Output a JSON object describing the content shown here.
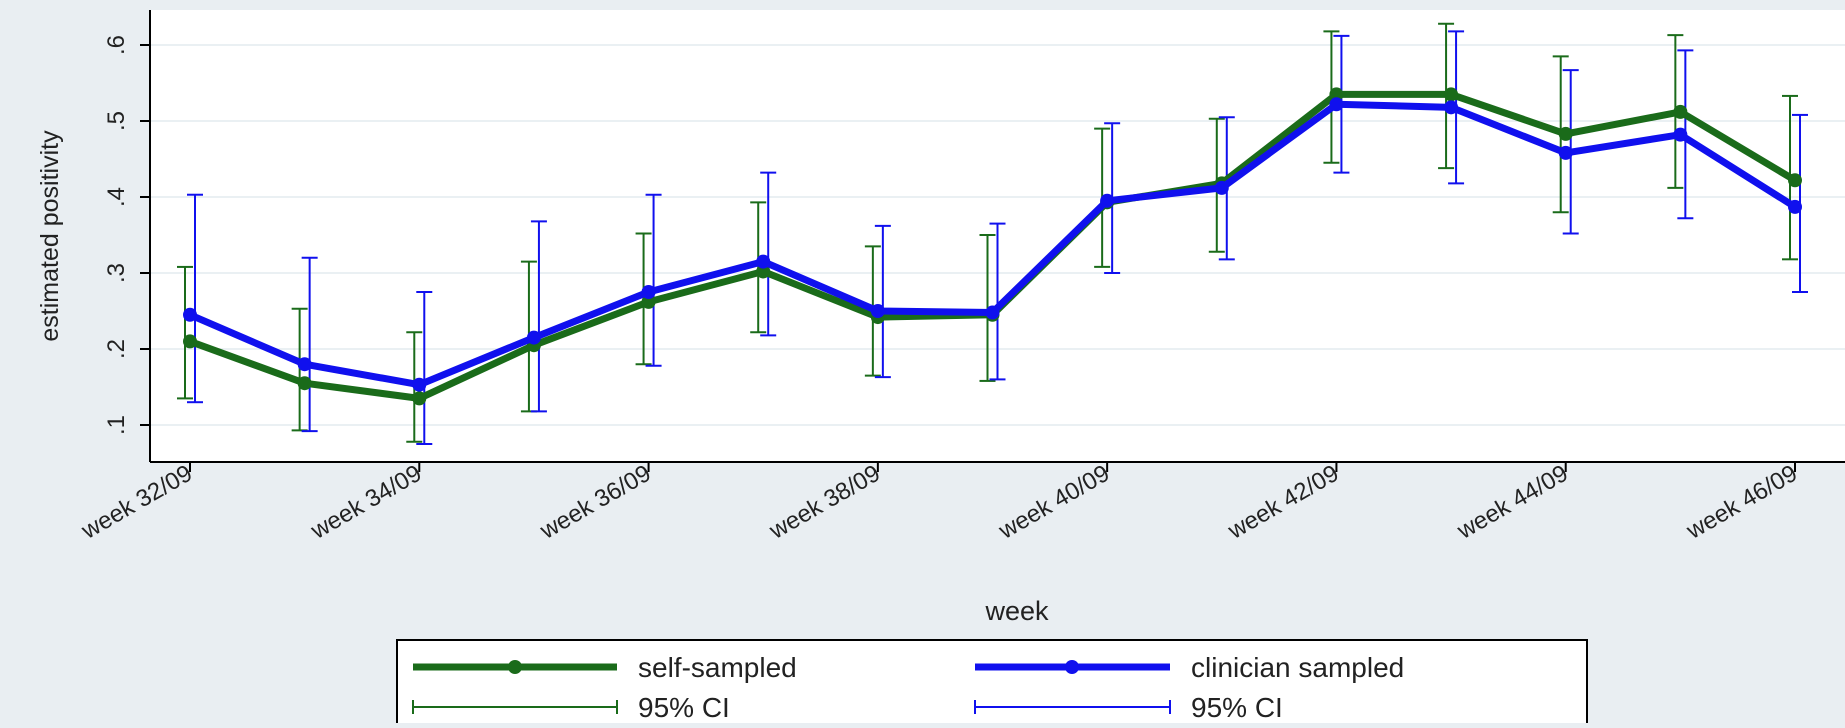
{
  "chart_data": {
    "type": "line",
    "title": "",
    "xlabel": "week",
    "ylabel": "estimated positivity",
    "ylim": [
      0.08,
      0.64
    ],
    "yticks": [
      0.1,
      0.2,
      0.3,
      0.4,
      0.5,
      0.6
    ],
    "ytick_labels": [
      ".1",
      ".2",
      ".3",
      ".4",
      ".5",
      ".6"
    ],
    "x": [
      32,
      33,
      34,
      35,
      36,
      37,
      38,
      39,
      40,
      41,
      42,
      43,
      44,
      45,
      46
    ],
    "xticks": [
      32,
      34,
      36,
      38,
      40,
      42,
      44,
      46
    ],
    "xtick_labels": [
      "week 32/09",
      "week 34/09",
      "week 36/09",
      "week 38/09",
      "week 40/09",
      "week 42/09",
      "week 44/09",
      "week 46/09"
    ],
    "grid": true,
    "legend_position": "bottom",
    "series": [
      {
        "name": "self-sampled",
        "color": "#1a6b1a",
        "values": [
          0.21,
          0.155,
          0.135,
          0.205,
          0.262,
          0.302,
          0.242,
          0.245,
          0.393,
          0.418,
          0.535,
          0.535,
          0.483,
          0.512,
          0.422
        ],
        "ci_low": [
          0.135,
          0.093,
          0.078,
          0.118,
          0.18,
          0.222,
          0.165,
          0.158,
          0.308,
          0.328,
          0.445,
          0.438,
          0.38,
          0.412,
          0.318
        ],
        "ci_high": [
          0.308,
          0.253,
          0.222,
          0.315,
          0.352,
          0.393,
          0.335,
          0.35,
          0.49,
          0.503,
          0.618,
          0.628,
          0.585,
          0.613,
          0.533
        ]
      },
      {
        "name": "clinician sampled",
        "color": "#1010ee",
        "values": [
          0.245,
          0.18,
          0.153,
          0.215,
          0.275,
          0.315,
          0.25,
          0.248,
          0.395,
          0.412,
          0.522,
          0.518,
          0.458,
          0.482,
          0.387
        ],
        "ci_low": [
          0.13,
          0.092,
          0.075,
          0.118,
          0.178,
          0.218,
          0.163,
          0.16,
          0.3,
          0.318,
          0.432,
          0.418,
          0.352,
          0.372,
          0.275
        ],
        "ci_high": [
          0.403,
          0.32,
          0.275,
          0.368,
          0.403,
          0.432,
          0.362,
          0.365,
          0.497,
          0.505,
          0.612,
          0.618,
          0.567,
          0.593,
          0.508
        ]
      }
    ],
    "legend": {
      "entries": [
        {
          "label": "self-sampled",
          "color": "#1a6b1a",
          "kind": "line"
        },
        {
          "label": "clinician sampled",
          "color": "#1010ee",
          "kind": "line"
        },
        {
          "label": "95% CI",
          "color": "#1a6b1a",
          "kind": "ci"
        },
        {
          "label": "95% CI",
          "color": "#1010ee",
          "kind": "ci"
        }
      ]
    }
  }
}
